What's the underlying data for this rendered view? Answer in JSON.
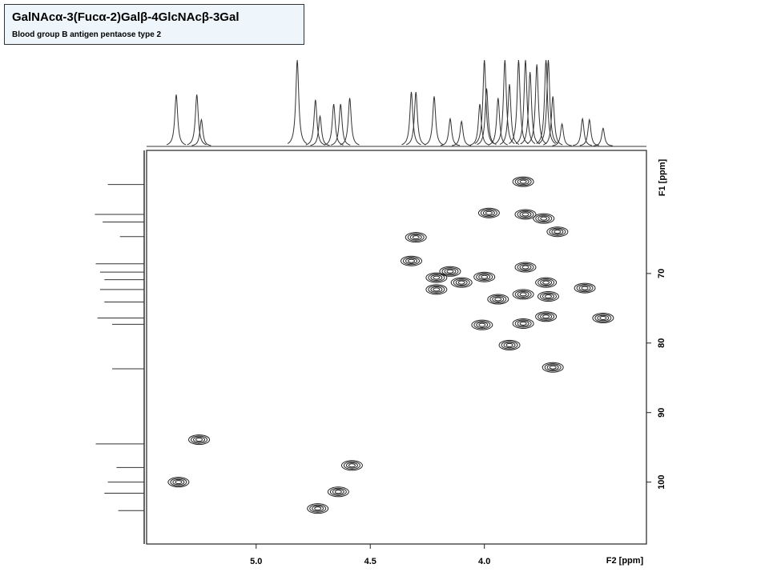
{
  "chart_data": {
    "type": "contour",
    "title": "GalNAcα-3(Fucα-2)Galβ-4GlcNAcβ-3Gal",
    "subtitle": "Blood group B antigen pentaose type 2",
    "x_label": "F2 [ppm]",
    "y_label": "F1 [ppm]",
    "xlim": [
      5.48,
      3.29
    ],
    "ylim": [
      52.3,
      108.9
    ],
    "xticks": [
      {
        "value": 5,
        "label": "5.0"
      },
      4.5,
      {
        "value": 4,
        "label": "4.0"
      }
    ],
    "yticks": [
      70,
      80,
      90,
      100
    ],
    "color": "#222222",
    "peaks": {
      "x": [
        3.83,
        3.98,
        3.82,
        3.74,
        3.68,
        4.3,
        4.32,
        4.21,
        4.21,
        4.15,
        4.1,
        4.0,
        3.94,
        3.82,
        3.73,
        3.72,
        3.83,
        3.56,
        4.01,
        3.83,
        3.73,
        3.48,
        3.89,
        3.7,
        5.25,
        5.34,
        4.58,
        4.64,
        4.73
      ],
      "y": [
        56.8,
        61.3,
        61.5,
        62.1,
        64.0,
        64.8,
        68.2,
        70.6,
        72.3,
        69.7,
        71.3,
        70.5,
        73.7,
        69.1,
        71.3,
        73.3,
        73.0,
        72.1,
        77.4,
        77.2,
        76.2,
        76.4,
        80.3,
        83.5,
        93.9,
        100.0,
        97.6,
        101.4,
        103.8
      ]
    },
    "top_projection": {
      "x": [
        5.35,
        5.26,
        5.24,
        4.82,
        4.74,
        4.72,
        4.66,
        4.63,
        4.59,
        4.32,
        4.3,
        4.22,
        4.15,
        4.1,
        4.02,
        4.0,
        3.99,
        3.94,
        3.91,
        3.89,
        3.85,
        3.82,
        3.8,
        3.77,
        3.73,
        3.72,
        3.7,
        3.66,
        3.57,
        3.54,
        3.48
      ],
      "values": [
        60,
        60,
        31,
        100,
        54,
        35,
        49,
        49,
        56,
        63,
        63,
        58,
        32,
        29,
        49,
        100,
        67,
        56,
        100,
        72,
        100,
        100,
        86,
        95,
        100,
        100,
        58,
        26,
        32,
        31,
        21
      ]
    },
    "left_projection": {
      "ppm": [
        57.2,
        61.5,
        62.6,
        64.7,
        68.6,
        69.8,
        70.9,
        72.3,
        74.1,
        76.4,
        77.3,
        83.7,
        94.5,
        97.9,
        100.0,
        101.6,
        104.1
      ],
      "values": [
        42,
        57,
        48,
        28,
        56,
        51,
        46,
        51,
        46,
        54,
        37,
        37,
        56,
        32,
        42,
        46,
        30
      ]
    }
  }
}
